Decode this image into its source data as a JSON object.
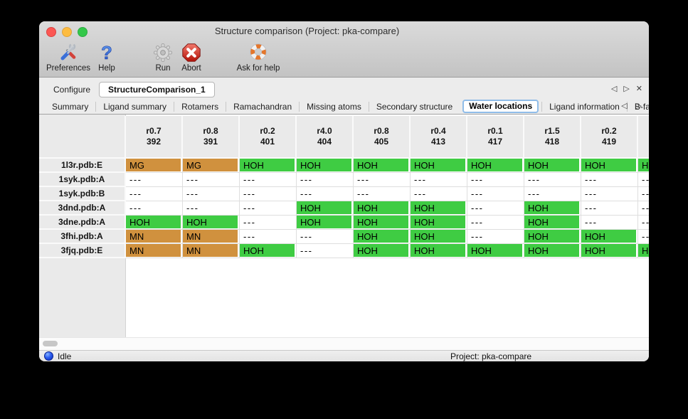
{
  "window": {
    "title": "Structure comparison (Project: pka-compare)"
  },
  "toolbar": {
    "preferences": "Preferences",
    "help": "Help",
    "run": "Run",
    "abort": "Abort",
    "ask_for_help": "Ask for help"
  },
  "icons": {
    "prev": "◁",
    "next": "▷",
    "close": "✕"
  },
  "main_tabs": {
    "configure": "Configure",
    "structure_comparison": "StructureComparison_1"
  },
  "sub_tabs": {
    "items": [
      {
        "label": "Summary",
        "active": false
      },
      {
        "label": "Ligand summary",
        "active": false
      },
      {
        "label": "Rotamers",
        "active": false
      },
      {
        "label": "Ramachandran",
        "active": false
      },
      {
        "label": "Missing atoms",
        "active": false
      },
      {
        "label": "Secondary structure",
        "active": false
      },
      {
        "label": "Water locations",
        "active": true
      },
      {
        "label": "Ligand information",
        "active": false
      },
      {
        "label": "B-factors",
        "active": false
      }
    ]
  },
  "table": {
    "columns": [
      {
        "line1": "r0.7",
        "line2": "392"
      },
      {
        "line1": "r0.8",
        "line2": "391"
      },
      {
        "line1": "r0.2",
        "line2": "401"
      },
      {
        "line1": "r4.0",
        "line2": "404"
      },
      {
        "line1": "r0.8",
        "line2": "405"
      },
      {
        "line1": "r0.4",
        "line2": "413"
      },
      {
        "line1": "r0.1",
        "line2": "417"
      },
      {
        "line1": "r1.5",
        "line2": "418"
      },
      {
        "line1": "r0.2",
        "line2": "419"
      },
      {
        "line1": "",
        "line2": ""
      }
    ],
    "rows": [
      {
        "label": "1l3r.pdb:E",
        "cells": [
          {
            "text": "MG",
            "kind": "metal"
          },
          {
            "text": "MG",
            "kind": "metal"
          },
          {
            "text": "HOH",
            "kind": "water"
          },
          {
            "text": "HOH",
            "kind": "water"
          },
          {
            "text": "HOH",
            "kind": "water"
          },
          {
            "text": "HOH",
            "kind": "water"
          },
          {
            "text": "HOH",
            "kind": "water"
          },
          {
            "text": "HOH",
            "kind": "water"
          },
          {
            "text": "HOH",
            "kind": "water"
          },
          {
            "text": "HOH",
            "kind": "water"
          }
        ]
      },
      {
        "label": "1syk.pdb:A",
        "cells": [
          {
            "text": "---",
            "kind": "empty"
          },
          {
            "text": "---",
            "kind": "empty"
          },
          {
            "text": "---",
            "kind": "empty"
          },
          {
            "text": "---",
            "kind": "empty"
          },
          {
            "text": "---",
            "kind": "empty"
          },
          {
            "text": "---",
            "kind": "empty"
          },
          {
            "text": "---",
            "kind": "empty"
          },
          {
            "text": "---",
            "kind": "empty"
          },
          {
            "text": "---",
            "kind": "empty"
          },
          {
            "text": "---",
            "kind": "empty"
          }
        ]
      },
      {
        "label": "1syk.pdb:B",
        "cells": [
          {
            "text": "---",
            "kind": "empty"
          },
          {
            "text": "---",
            "kind": "empty"
          },
          {
            "text": "---",
            "kind": "empty"
          },
          {
            "text": "---",
            "kind": "empty"
          },
          {
            "text": "---",
            "kind": "empty"
          },
          {
            "text": "---",
            "kind": "empty"
          },
          {
            "text": "---",
            "kind": "empty"
          },
          {
            "text": "---",
            "kind": "empty"
          },
          {
            "text": "---",
            "kind": "empty"
          },
          {
            "text": "---",
            "kind": "empty"
          }
        ]
      },
      {
        "label": "3dnd.pdb:A",
        "cells": [
          {
            "text": "---",
            "kind": "empty"
          },
          {
            "text": "---",
            "kind": "empty"
          },
          {
            "text": "---",
            "kind": "empty"
          },
          {
            "text": "HOH",
            "kind": "water"
          },
          {
            "text": "HOH",
            "kind": "water"
          },
          {
            "text": "HOH",
            "kind": "water"
          },
          {
            "text": "---",
            "kind": "empty"
          },
          {
            "text": "HOH",
            "kind": "water"
          },
          {
            "text": "---",
            "kind": "empty"
          },
          {
            "text": "---",
            "kind": "empty"
          }
        ]
      },
      {
        "label": "3dne.pdb:A",
        "cells": [
          {
            "text": "HOH",
            "kind": "water"
          },
          {
            "text": "HOH",
            "kind": "water"
          },
          {
            "text": "---",
            "kind": "empty"
          },
          {
            "text": "HOH",
            "kind": "water"
          },
          {
            "text": "HOH",
            "kind": "water"
          },
          {
            "text": "HOH",
            "kind": "water"
          },
          {
            "text": "---",
            "kind": "empty"
          },
          {
            "text": "HOH",
            "kind": "water"
          },
          {
            "text": "---",
            "kind": "empty"
          },
          {
            "text": "---",
            "kind": "empty"
          }
        ]
      },
      {
        "label": "3fhi.pdb:A",
        "cells": [
          {
            "text": "MN",
            "kind": "metal"
          },
          {
            "text": "MN",
            "kind": "metal"
          },
          {
            "text": "---",
            "kind": "empty"
          },
          {
            "text": "---",
            "kind": "empty"
          },
          {
            "text": "HOH",
            "kind": "water"
          },
          {
            "text": "HOH",
            "kind": "water"
          },
          {
            "text": "---",
            "kind": "empty"
          },
          {
            "text": "HOH",
            "kind": "water"
          },
          {
            "text": "HOH",
            "kind": "water"
          },
          {
            "text": "---",
            "kind": "empty"
          }
        ]
      },
      {
        "label": "3fjq.pdb:E",
        "cells": [
          {
            "text": "MN",
            "kind": "metal"
          },
          {
            "text": "MN",
            "kind": "metal"
          },
          {
            "text": "HOH",
            "kind": "water"
          },
          {
            "text": "---",
            "kind": "empty"
          },
          {
            "text": "HOH",
            "kind": "water"
          },
          {
            "text": "HOH",
            "kind": "water"
          },
          {
            "text": "HOH",
            "kind": "water"
          },
          {
            "text": "HOH",
            "kind": "water"
          },
          {
            "text": "HOH",
            "kind": "water"
          },
          {
            "text": "HOH",
            "kind": "water"
          }
        ]
      }
    ]
  },
  "status_bar": {
    "status": "Idle",
    "project": "Project: pka-compare"
  },
  "colors": {
    "metal": "#d0913e",
    "water": "#3fcc43"
  }
}
